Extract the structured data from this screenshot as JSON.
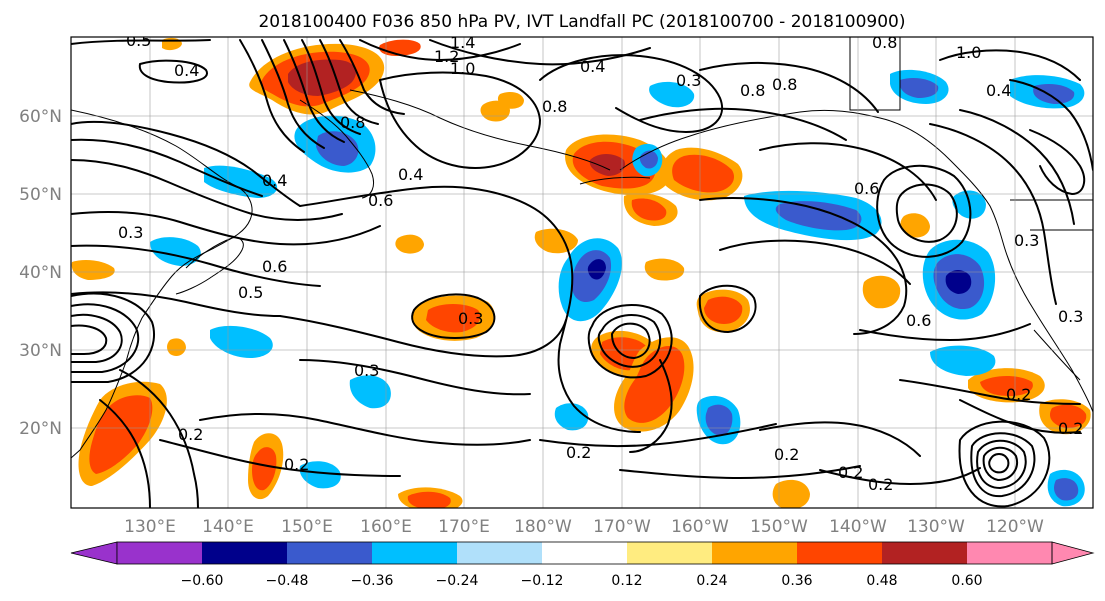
{
  "figure": {
    "title": "2018100400 F036 850 hPa PV, IVT Landfall PC (2018100700 - 2018100900)"
  },
  "map": {
    "lat_labels": [
      "60°N",
      "50°N",
      "40°N",
      "30°N",
      "20°N"
    ],
    "lon_labels": [
      "130°E",
      "140°E",
      "150°E",
      "160°E",
      "170°E",
      "180°W",
      "170°W",
      "160°W",
      "150°W",
      "140°W",
      "130°W",
      "120°W"
    ],
    "colors": {
      "land_outline": "#000000",
      "contour": "#000000",
      "grid": "#9a9a9a"
    }
  },
  "colorbar": {
    "tick_labels": [
      "−0.60",
      "−0.48",
      "−0.36",
      "−0.24",
      "−0.12",
      "0.12",
      "0.24",
      "0.36",
      "0.48",
      "0.60"
    ],
    "colors": [
      "#9932cc",
      "#00008b",
      "#3a5acd",
      "#00bfff",
      "#b0e0fa",
      "#ffffff",
      "#ffec80",
      "#ffa500",
      "#ff4500",
      "#b22222",
      "#ff88b0"
    ]
  },
  "contour_labels": [
    {
      "text": "0.5"
    },
    {
      "text": "0.4"
    },
    {
      "text": "1.4"
    },
    {
      "text": "1.2"
    },
    {
      "text": "1.0"
    },
    {
      "text": "0.8"
    },
    {
      "text": "0.8"
    },
    {
      "text": "0.6"
    },
    {
      "text": "0.6"
    },
    {
      "text": "0.4"
    },
    {
      "text": "0.3"
    },
    {
      "text": "0.5"
    },
    {
      "text": "0.3"
    },
    {
      "text": "0.3"
    },
    {
      "text": "0.2"
    },
    {
      "text": "0.2"
    },
    {
      "text": "0.2"
    },
    {
      "text": "0.2"
    },
    {
      "text": "0.6"
    },
    {
      "text": "0.8"
    },
    {
      "text": "1.0"
    },
    {
      "text": "0.4"
    },
    {
      "text": "0.3"
    },
    {
      "text": "0.2"
    },
    {
      "text": "0.8"
    },
    {
      "text": "0.4"
    },
    {
      "text": "0.2"
    },
    {
      "text": "0.6"
    },
    {
      "text": "0.4"
    },
    {
      "text": "0.3"
    },
    {
      "text": "0.2"
    },
    {
      "text": "0.2"
    },
    {
      "text": "0.8"
    },
    {
      "text": "0.3"
    }
  ]
}
